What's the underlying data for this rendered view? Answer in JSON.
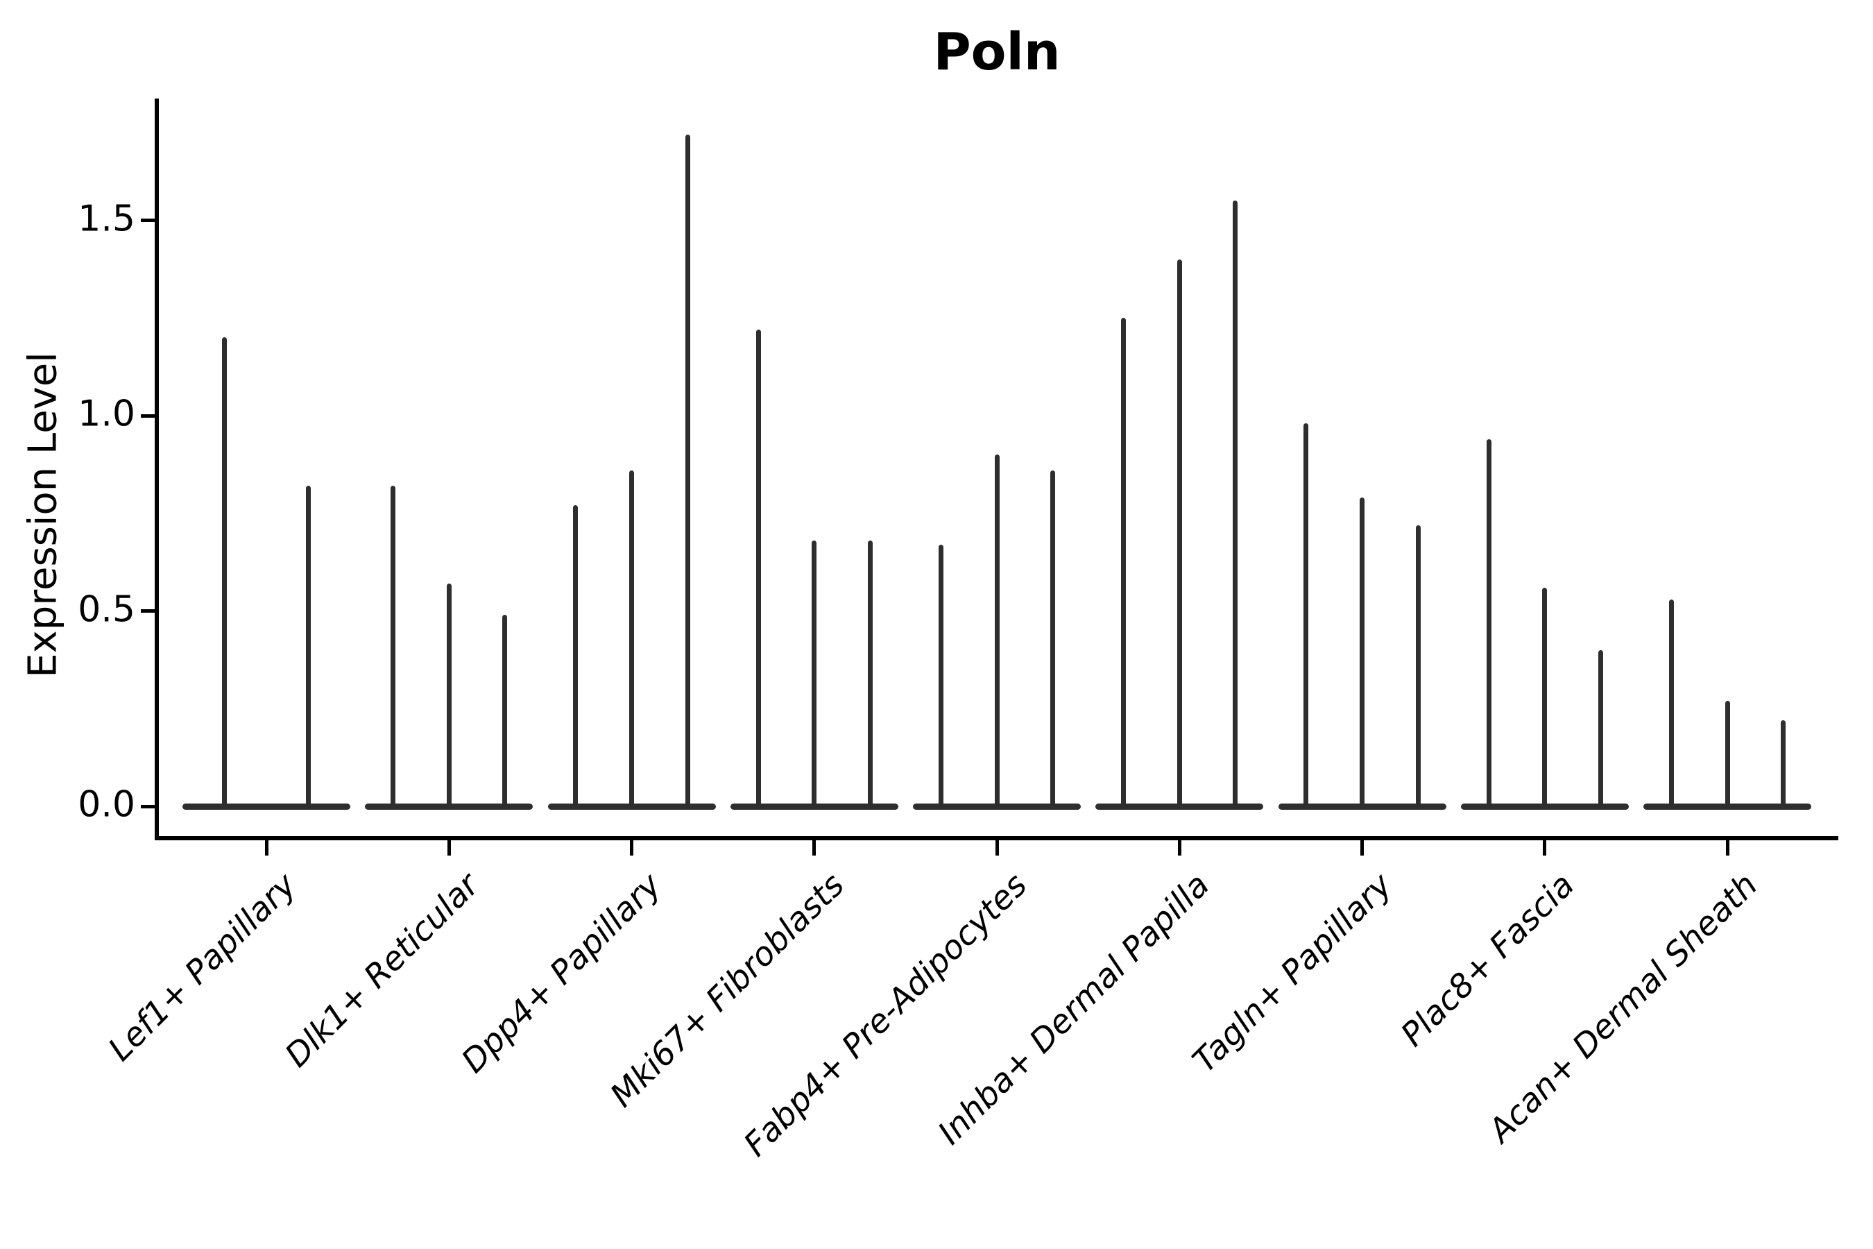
{
  "chart_data": {
    "type": "violin",
    "title": "Poln",
    "ylabel": "Expression Level",
    "xlabel": "",
    "ylim": [
      0,
      1.81
    ],
    "yticks": [
      0,
      0.5,
      1.0,
      1.5
    ],
    "ytick_labels": [
      "0.0",
      "0.5",
      "1.0",
      "1.5"
    ],
    "grid": false,
    "legend_position": "none",
    "x_tick_rotation": 45,
    "description": "Thin violin plot of Poln expression; each group has 2-3 narrow violins collapsed at 0 with a spike to the listed max expression value.",
    "groups": [
      {
        "label": "Lef1+ Papillary",
        "violin_max_values": [
          1.2,
          0.82
        ]
      },
      {
        "label": "Dlk1+ Reticular",
        "violin_max_values": [
          0.82,
          0.57,
          0.49
        ]
      },
      {
        "label": "Dpp4+ Papillary",
        "violin_max_values": [
          0.77,
          0.86,
          1.72
        ]
      },
      {
        "label": "Mki67+ Fibroblasts",
        "violin_max_values": [
          1.22,
          0.68,
          0.68
        ]
      },
      {
        "label": "Fabp4+ Pre-Adipocytes",
        "violin_max_values": [
          0.67,
          0.9,
          0.86
        ]
      },
      {
        "label": "Inhba+ Dermal Papilla",
        "violin_max_values": [
          1.25,
          1.4,
          1.55
        ]
      },
      {
        "label": "Tagln+ Papillary",
        "violin_max_values": [
          0.98,
          0.79,
          0.72
        ]
      },
      {
        "label": "Plac8+ Fascia",
        "violin_max_values": [
          0.94,
          0.56,
          0.4
        ]
      },
      {
        "label": "Acan+ Dermal Sheath",
        "violin_max_values": [
          0.53,
          0.27,
          0.22
        ]
      }
    ]
  }
}
